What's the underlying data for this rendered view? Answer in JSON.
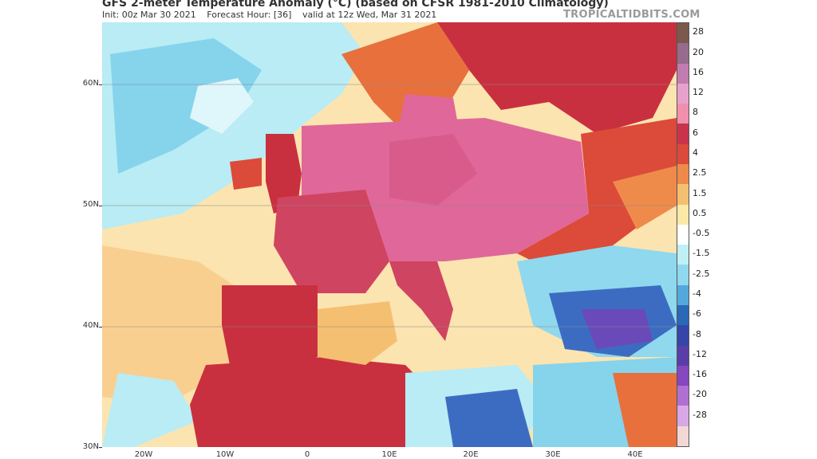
{
  "header": {
    "title": "GFS 2-meter Temperature Anomaly (°C) (based on CFSR 1981-2010 Climatology)",
    "init": "Init: 00z Mar 30 2021",
    "forecast_hour": "Forecast Hour: [36]",
    "valid": "valid at 12z Wed, Mar 31 2021",
    "brand": "TROPICALTIDBITS.COM"
  },
  "axes": {
    "lat_labels": [
      "60N",
      "50N",
      "40N",
      "30N"
    ],
    "lon_labels": [
      "20W",
      "10W",
      "0",
      "10E",
      "20E",
      "30E",
      "40E"
    ]
  },
  "colorbar": {
    "levels": [
      "28",
      "20",
      "16",
      "12",
      "8",
      "6",
      "4",
      "2.5",
      "1.5",
      "0.5",
      "-0.5",
      "-1.5",
      "-2.5",
      "-4",
      "-6",
      "-8",
      "-12",
      "-16",
      "-20",
      "-28"
    ],
    "colors": [
      "#7a5a4c",
      "#956c8a",
      "#c27cb0",
      "#e8a1cc",
      "#f18fae",
      "#c9344c",
      "#dc4a3a",
      "#ef8b4a",
      "#f5bf72",
      "#fbe9a8",
      "#ffffff",
      "#bff0f6",
      "#8fd8ee",
      "#53a8dc",
      "#2a68b8",
      "#3546a8",
      "#5a3da8",
      "#8547c0",
      "#b070d2",
      "#d8a8e6",
      "#f3d6d6"
    ]
  },
  "map": {
    "colors": {
      "ocean_warm": "#f9cf90",
      "ocean_mild": "#fbe4b0",
      "ocean_cool": "#b9ecf4",
      "ocean_cold": "#86d3ec",
      "land_hot": "#cf4460",
      "land_pink": "#e0679a",
      "land_red": "#c9303f",
      "land_orange": "#e8703c",
      "cold_blue": "#3c6cc2",
      "cold_purple": "#6a4ab8",
      "border": "#222222"
    }
  }
}
